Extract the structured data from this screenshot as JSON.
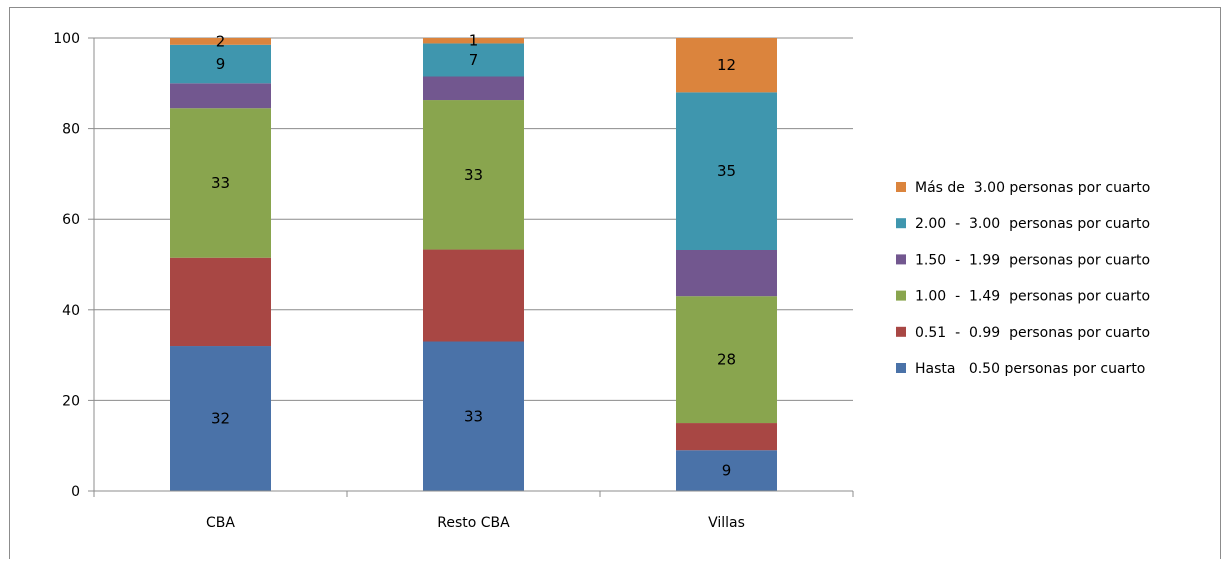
{
  "chart_data": {
    "type": "bar",
    "stacked": true,
    "categories": [
      "CBA",
      "Resto CBA",
      "Villas"
    ],
    "ylim": [
      0,
      100
    ],
    "yticks": [
      0,
      20,
      40,
      60,
      80,
      100
    ],
    "grid": true,
    "legend_position": "right",
    "series": [
      {
        "name": "Hasta   0.50 personas por cuarto",
        "color": "#4a72a8",
        "values": [
          32,
          33,
          9
        ],
        "labels": [
          "32",
          "33",
          "9"
        ]
      },
      {
        "name": "0.51  -  0.99  personas por cuarto",
        "color": "#a84744",
        "values": [
          19.5,
          20.3,
          6
        ],
        "labels": [
          "",
          "",
          ""
        ]
      },
      {
        "name": "1.00  -  1.49  personas por cuarto",
        "color": "#89a54e",
        "values": [
          33,
          33,
          28
        ],
        "labels": [
          "33",
          "33",
          "28"
        ]
      },
      {
        "name": "1.50  -  1.99  personas por cuarto",
        "color": "#72578f",
        "values": [
          5.5,
          5.2,
          10.2
        ],
        "labels": [
          "",
          "",
          ""
        ]
      },
      {
        "name": "2.00  -  3.00  personas por cuarto",
        "color": "#3f96ae",
        "values": [
          8.5,
          7.3,
          34.8
        ],
        "labels": [
          "9",
          "7",
          "35"
        ]
      },
      {
        "name": "Más de  3.00 personas por cuarto",
        "color": "#db843d",
        "values": [
          1.5,
          1.2,
          12
        ],
        "labels": [
          "2",
          "1",
          "12"
        ]
      }
    ]
  }
}
